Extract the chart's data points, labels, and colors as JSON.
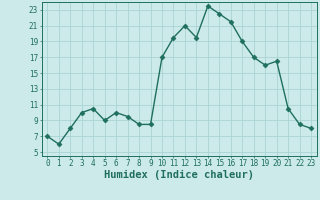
{
  "x": [
    0,
    1,
    2,
    3,
    4,
    5,
    6,
    7,
    8,
    9,
    10,
    11,
    12,
    13,
    14,
    15,
    16,
    17,
    18,
    19,
    20,
    21,
    22,
    23
  ],
  "y": [
    7,
    6,
    8,
    10,
    10.5,
    9,
    10,
    9.5,
    8.5,
    8.5,
    17,
    19.5,
    21,
    19.5,
    23.5,
    22.5,
    21.5,
    19,
    17,
    16,
    16.5,
    10.5,
    8.5,
    8
  ],
  "line_color": "#1f6f5e",
  "marker": "D",
  "markersize": 2.5,
  "linewidth": 1.0,
  "bg_color": "#cceaea",
  "grid_color": "#aad4d4",
  "xlabel": "Humidex (Indice chaleur)",
  "xlim": [
    -0.5,
    23.5
  ],
  "ylim": [
    4.5,
    24
  ],
  "yticks": [
    5,
    7,
    9,
    11,
    13,
    15,
    17,
    19,
    21,
    23
  ],
  "xticks": [
    0,
    1,
    2,
    3,
    4,
    5,
    6,
    7,
    8,
    9,
    10,
    11,
    12,
    13,
    14,
    15,
    16,
    17,
    18,
    19,
    20,
    21,
    22,
    23
  ],
  "tick_fontsize": 5.5,
  "xlabel_fontsize": 7.5,
  "tick_color": "#1f6f5e"
}
